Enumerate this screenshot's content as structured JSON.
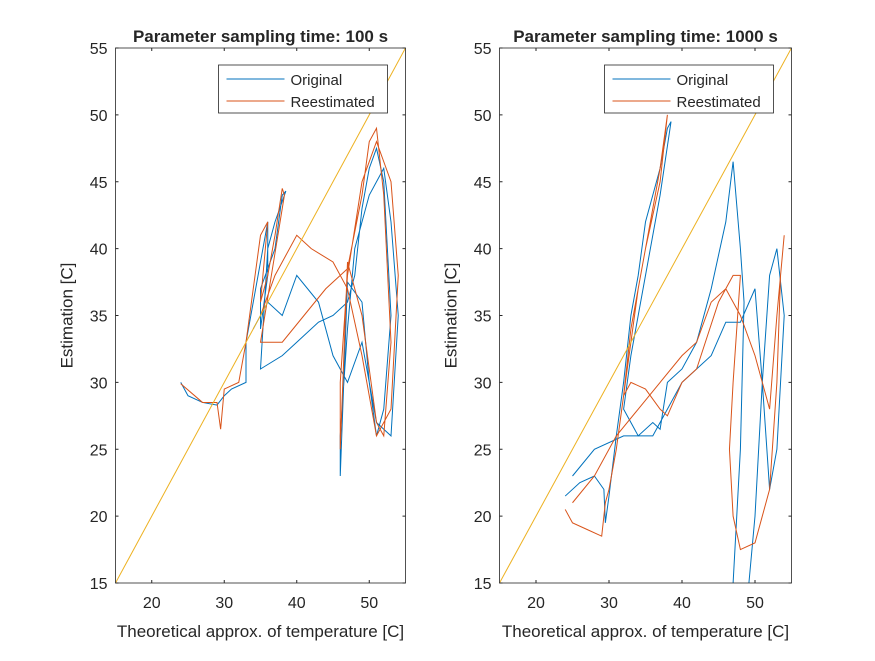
{
  "chart_data": [
    {
      "type": "line",
      "title": "Parameter sampling time: 100 s",
      "xlabel": "Theoretical approx. of temperature [C]",
      "ylabel": "Estimation [C]",
      "xlim": [
        15,
        55
      ],
      "ylim": [
        15,
        55
      ],
      "xticks": [
        20,
        30,
        40,
        50
      ],
      "yticks": [
        15,
        20,
        25,
        30,
        35,
        40,
        45,
        50,
        55
      ],
      "legend": "northeast",
      "reference_line": {
        "color": "#EDB120",
        "x": [
          15,
          55
        ],
        "values": [
          15,
          55
        ]
      },
      "series": [
        {
          "name": "Original",
          "color": "#0072BD",
          "x": [
            24,
            25,
            27,
            29,
            30,
            31,
            33,
            33,
            34,
            35,
            36,
            36,
            35,
            35,
            37,
            38,
            38.5,
            37,
            36,
            35,
            38,
            40,
            43,
            45,
            47,
            48,
            49,
            50,
            51,
            52,
            53,
            52,
            51,
            50,
            49,
            47,
            46,
            46,
            47,
            48,
            50,
            52,
            53,
            54,
            53,
            51,
            49,
            47,
            45,
            43,
            40,
            38,
            36,
            34
          ],
          "values": [
            30,
            29,
            28.5,
            28.3,
            29,
            29.5,
            30,
            33,
            36,
            39,
            42,
            38,
            34,
            37,
            40,
            44,
            44.3,
            42,
            40,
            31,
            32,
            33,
            34.5,
            35,
            36,
            38,
            43,
            46,
            47.5,
            45,
            35,
            28,
            26,
            30,
            36,
            37.5,
            23,
            26,
            34,
            40,
            44,
            46,
            42,
            35,
            26,
            27,
            33,
            30,
            32,
            36,
            38,
            35,
            36,
            34
          ]
        },
        {
          "name": "Reestimated",
          "color": "#D95319",
          "x": [
            24,
            27,
            29,
            29.5,
            30,
            32,
            33,
            34,
            35,
            36,
            35,
            36,
            37,
            38,
            38.3,
            35,
            38,
            41,
            44,
            47,
            49,
            50,
            51,
            52,
            53,
            52,
            51,
            49,
            47,
            46,
            46,
            47,
            49,
            51,
            53,
            54,
            53,
            51,
            49,
            47,
            45,
            42,
            40,
            37,
            35
          ],
          "values": [
            29.9,
            28.5,
            28.5,
            26.5,
            29.5,
            30,
            33,
            37,
            41,
            42,
            36,
            38,
            41,
            44.5,
            44,
            33,
            33,
            35,
            37,
            38.5,
            44,
            48,
            49,
            44,
            33,
            26,
            27,
            35,
            39,
            25,
            30,
            38,
            45,
            48,
            45,
            38,
            28,
            26,
            32,
            37,
            39,
            40,
            41,
            38,
            35
          ]
        }
      ]
    },
    {
      "type": "line",
      "title": "Parameter sampling time: 1000 s",
      "xlabel": "Theoretical approx. of temperature [C]",
      "ylabel": "Estimation [C]",
      "xlim": [
        15,
        55
      ],
      "ylim": [
        15,
        55
      ],
      "xticks": [
        20,
        30,
        40,
        50
      ],
      "yticks": [
        15,
        20,
        25,
        30,
        35,
        40,
        45,
        50,
        55
      ],
      "legend": "northeast",
      "reference_line": {
        "color": "#EDB120",
        "x": [
          15,
          55
        ],
        "values": [
          15,
          55
        ]
      },
      "series": [
        {
          "name": "Original",
          "color": "#0072BD",
          "x": [
            24,
            26,
            28,
            29.3,
            29.5,
            30,
            31,
            32,
            33,
            34,
            35,
            37,
            38,
            38.5,
            37,
            35,
            33,
            32,
            34,
            36,
            37,
            38,
            40,
            42,
            44,
            46,
            47,
            48,
            48.5,
            48,
            47,
            49,
            50,
            51,
            52,
            53,
            54,
            53,
            52,
            51,
            50,
            48,
            46,
            44,
            40,
            36,
            32,
            28,
            25
          ],
          "values": [
            21.5,
            22.5,
            23,
            22,
            19.5,
            21.5,
            26,
            30,
            35,
            38,
            42,
            46,
            49,
            49.5,
            44,
            38,
            32,
            28,
            26,
            27,
            26.5,
            30,
            31,
            33,
            37,
            42,
            46.5,
            40,
            36,
            25,
            15,
            14,
            20,
            30,
            38,
            40,
            35,
            25,
            22,
            30,
            37,
            34.5,
            34.5,
            32,
            30,
            26,
            26,
            25,
            23
          ]
        },
        {
          "name": "Reestimated",
          "color": "#D95319",
          "x": [
            24,
            25,
            27,
            29,
            29.5,
            30,
            31,
            32,
            33,
            34,
            35,
            37,
            38,
            37,
            35,
            33,
            32,
            33,
            35,
            37,
            38,
            40,
            42,
            45,
            47,
            48,
            47,
            46.5,
            47,
            48,
            50,
            52,
            53,
            53.5,
            54,
            53,
            52,
            50,
            48,
            46,
            44,
            42,
            40,
            37,
            34,
            31,
            28,
            25
          ],
          "values": [
            20.5,
            19.5,
            19,
            18.5,
            21,
            22,
            25,
            29,
            33,
            37,
            40,
            46,
            50,
            45,
            40,
            34,
            29,
            30,
            29.5,
            28,
            27.5,
            30,
            31,
            36,
            38,
            38,
            30,
            25,
            20,
            17.5,
            18,
            22,
            30,
            38,
            41,
            35,
            28,
            32,
            35,
            37,
            36,
            33,
            32,
            30,
            28,
            26,
            23,
            21
          ]
        }
      ]
    }
  ]
}
